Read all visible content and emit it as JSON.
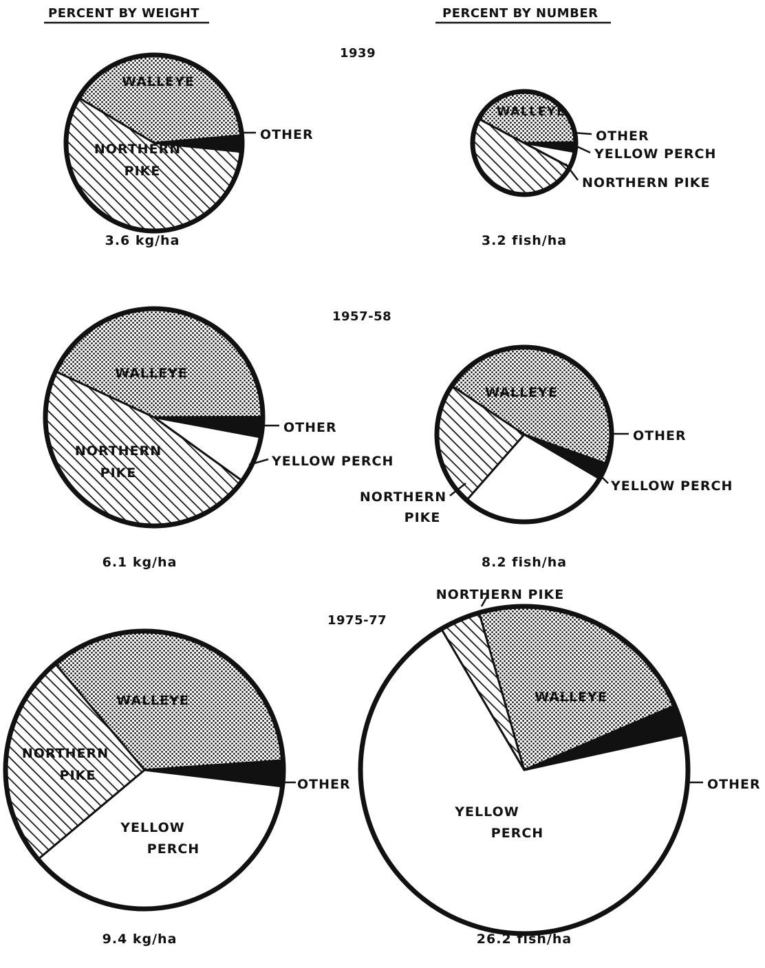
{
  "headers": {
    "left": "PERCENT BY WEIGHT",
    "right": "PERCENT BY NUMBER"
  },
  "periods": [
    "1939",
    "1957-58",
    "1975-77"
  ],
  "colors": {
    "walleye": "dotted-stipple",
    "northern_pike": "diagonal-hatch",
    "yellow_perch": "#ffffff",
    "other": "#111111"
  },
  "chart_data": [
    {
      "type": "pie",
      "period": "1939",
      "measure": "weight",
      "total": "3.6 kg/ha",
      "series": [
        {
          "name": "WALLEYE",
          "value": 40
        },
        {
          "name": "OTHER",
          "value": 3
        },
        {
          "name": "NORTHERN PIKE",
          "value": 57
        }
      ]
    },
    {
      "type": "pie",
      "period": "1939",
      "measure": "number",
      "total": "3.2 fish/ha",
      "series": [
        {
          "name": "WALLEYE",
          "value": 42
        },
        {
          "name": "OTHER",
          "value": 3
        },
        {
          "name": "YELLOW PERCH",
          "value": 5
        },
        {
          "name": "NORTHERN PIKE",
          "value": 50
        }
      ]
    },
    {
      "type": "pie",
      "period": "1957-58",
      "measure": "weight",
      "total": "6.1 kg/ha",
      "series": [
        {
          "name": "WALLEYE",
          "value": 43
        },
        {
          "name": "OTHER",
          "value": 3
        },
        {
          "name": "YELLOW PERCH",
          "value": 7
        },
        {
          "name": "NORTHERN PIKE",
          "value": 47
        }
      ]
    },
    {
      "type": "pie",
      "period": "1957-58",
      "measure": "number",
      "total": "8.2 fish/ha",
      "series": [
        {
          "name": "WALLEYE",
          "value": 46
        },
        {
          "name": "OTHER",
          "value": 3
        },
        {
          "name": "YELLOW PERCH",
          "value": 28
        },
        {
          "name": "NORTHERN PIKE",
          "value": 23
        }
      ]
    },
    {
      "type": "pie",
      "period": "1975-77",
      "measure": "weight",
      "total": "9.4 kg/ha",
      "series": [
        {
          "name": "WALLEYE",
          "value": 35
        },
        {
          "name": "OTHER",
          "value": 3
        },
        {
          "name": "YELLOW PERCH",
          "value": 37
        },
        {
          "name": "NORTHERN PIKE",
          "value": 25
        }
      ]
    },
    {
      "type": "pie",
      "period": "1975-77",
      "measure": "number",
      "total": "26.2 fish/ha",
      "series": [
        {
          "name": "WALLEYE",
          "value": 23
        },
        {
          "name": "OTHER",
          "value": 3
        },
        {
          "name": "YELLOW PERCH",
          "value": 70
        },
        {
          "name": "NORTHERN PIKE",
          "value": 4
        }
      ]
    }
  ],
  "labels": {
    "p1": {
      "walleye": "WALLEYE",
      "pike_l1": "NORTHERN",
      "pike_l2": "PIKE",
      "other": "OTHER"
    },
    "p2": {
      "walleye": "WALLEYE",
      "other": "OTHER",
      "perch": "YELLOW PERCH",
      "pike": "NORTHERN PIKE"
    },
    "p3": {
      "walleye": "WALLEYE",
      "pike_l1": "NORTHERN",
      "pike_l2": "PIKE",
      "other": "OTHER",
      "perch": "YELLOW PERCH"
    },
    "p4": {
      "walleye": "WALLEYE",
      "other": "OTHER",
      "perch": "YELLOW PERCH",
      "pike_l1": "NORTHERN",
      "pike_l2": "PIKE"
    },
    "p5": {
      "walleye": "WALLEYE",
      "pike_l1": "NORTHERN",
      "pike_l2": "PIKE",
      "other": "OTHER",
      "perch_l1": "YELLOW",
      "perch_l2": "PERCH"
    },
    "p6": {
      "pike": "NORTHERN PIKE",
      "walleye": "WALLEYE",
      "other": "OTHER",
      "perch_l1": "YELLOW",
      "perch_l2": "PERCH"
    }
  }
}
